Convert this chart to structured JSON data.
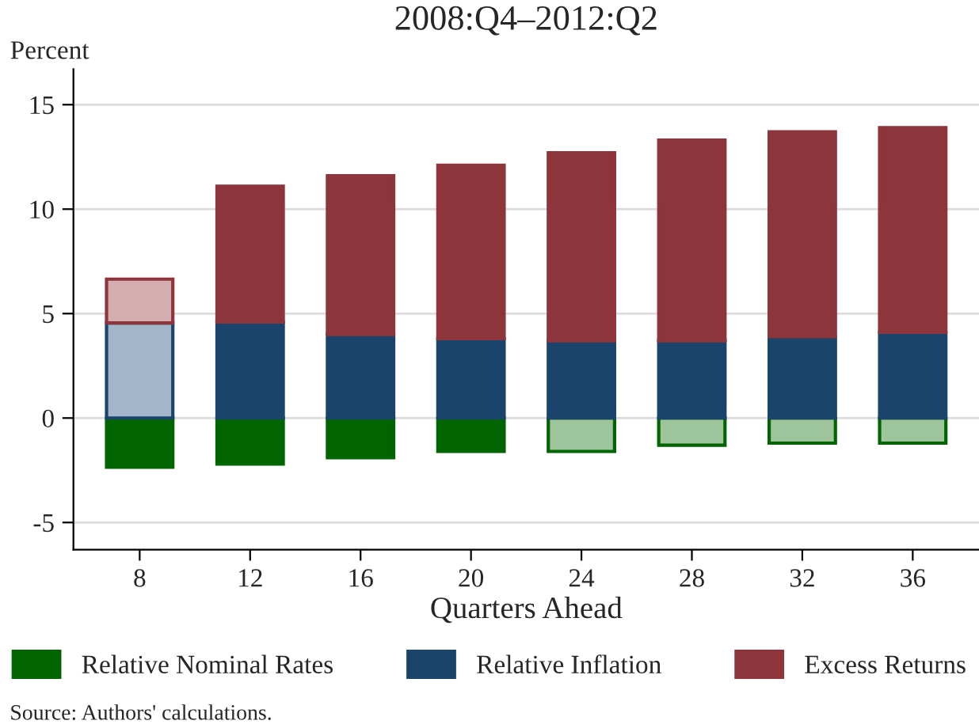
{
  "chart_data": {
    "type": "bar",
    "title": "2008:Q4–2012:Q2",
    "ylabel": "Percent",
    "xlabel": "Quarters Ahead",
    "categories": [
      "8",
      "12",
      "16",
      "20",
      "24",
      "28",
      "32",
      "36"
    ],
    "stacked": true,
    "series": [
      {
        "name": "Relative Nominal Rates",
        "color": "#006400",
        "colors": [
          "#006400",
          "#006400",
          "#006400",
          "#006400",
          "#9dc49a",
          "#9dc49a",
          "#9dc49a",
          "#9dc49a"
        ],
        "values": [
          -2.35,
          -2.2,
          -1.9,
          -1.6,
          -1.6,
          -1.3,
          -1.2,
          -1.2
        ]
      },
      {
        "name": "Relative Inflation",
        "color": "#1a446c",
        "colors": [
          "#a3b6c9",
          "#1a446c",
          "#1a446c",
          "#1a446c",
          "#1a446c",
          "#1a446c",
          "#1a446c",
          "#1a446c"
        ],
        "values": [
          4.55,
          4.6,
          4.0,
          3.8,
          3.7,
          3.7,
          3.9,
          4.1
        ]
      },
      {
        "name": "Excess Returns",
        "color": "#8e353c",
        "colors": [
          "#d4adb0",
          "#8e353c",
          "#8e353c",
          "#8e353c",
          "#8e353c",
          "#8e353c",
          "#8e353c",
          "#8e353c"
        ],
        "values": [
          2.1,
          6.5,
          7.6,
          8.3,
          9.0,
          9.6,
          9.8,
          9.8
        ]
      }
    ],
    "ylim": [
      -6.3,
      16.7
    ],
    "yticks": [
      -5,
      0,
      5,
      10,
      15
    ],
    "grid": "y",
    "legend": "bottom",
    "annotations": [
      "Source: Authors' calculations."
    ]
  }
}
